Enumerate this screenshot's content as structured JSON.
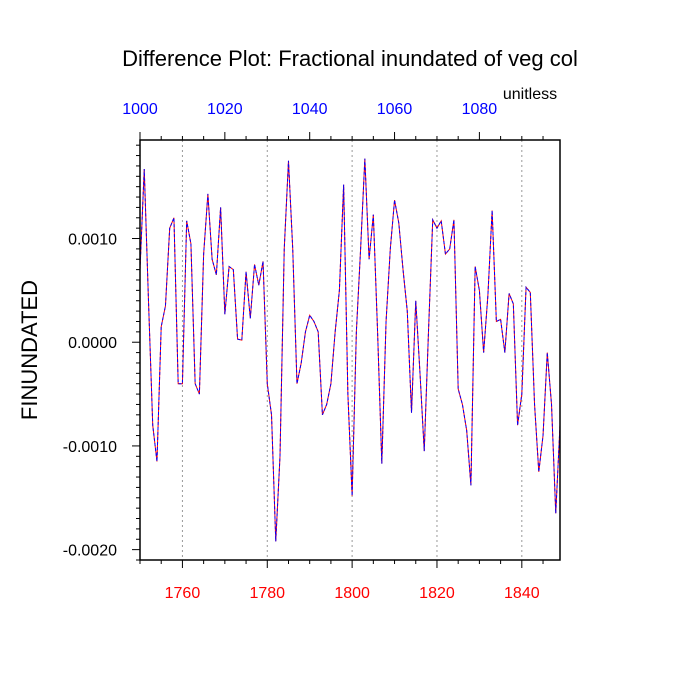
{
  "chart_data": {
    "type": "line",
    "title": "Difference Plot: Fractional inundated of veg col",
    "ylabel": "FINUNDATED",
    "units_label": "unitless",
    "xlim": [
      1750,
      1849
    ],
    "ylim": [
      -0.0021,
      0.00195
    ],
    "x_bottom_ticks": [
      1760,
      1780,
      1800,
      1820,
      1840
    ],
    "x_bottom_tick_labels": [
      "1760",
      "1780",
      "1800",
      "1820",
      "1840"
    ],
    "x_top_ticks": [
      1000,
      1020,
      1040,
      1060,
      1080
    ],
    "x_top_tick_labels": [
      "1000",
      "1020",
      "1040",
      "1060",
      "1080"
    ],
    "x_top_offset": 750,
    "y_ticks": [
      0.001,
      0.0,
      -0.001,
      -0.002
    ],
    "y_tick_labels": [
      "0.0010",
      "0.0000",
      "-0.0010",
      "-0.0020"
    ],
    "grid": "vertical dotted at bottom ticks",
    "colors": {
      "series_a": "#ff0000",
      "series_b": "#0000ff",
      "bottom_ticks": "#ff0000",
      "top_ticks": "#0000ff",
      "axis": "#000000",
      "grid": "#999999"
    },
    "series": [
      {
        "name": "difference",
        "x": [
          1750,
          1751,
          1752,
          1753,
          1754,
          1755,
          1756,
          1757,
          1758,
          1759,
          1760,
          1761,
          1762,
          1763,
          1764,
          1765,
          1766,
          1767,
          1768,
          1769,
          1770,
          1771,
          1772,
          1773,
          1774,
          1775,
          1776,
          1777,
          1778,
          1779,
          1780,
          1781,
          1782,
          1783,
          1784,
          1785,
          1786,
          1787,
          1788,
          1789,
          1790,
          1791,
          1792,
          1793,
          1794,
          1795,
          1796,
          1797,
          1798,
          1799,
          1800,
          1801,
          1802,
          1803,
          1804,
          1805,
          1806,
          1807,
          1808,
          1809,
          1810,
          1811,
          1812,
          1813,
          1814,
          1815,
          1816,
          1817,
          1818,
          1819,
          1820,
          1821,
          1822,
          1823,
          1824,
          1825,
          1826,
          1827,
          1828,
          1829,
          1830,
          1831,
          1832,
          1833,
          1834,
          1835,
          1836,
          1837,
          1838,
          1839,
          1840,
          1841,
          1842,
          1843,
          1844,
          1845,
          1846,
          1847,
          1848,
          1849
        ],
        "values": [
          0.0007,
          0.00167,
          0.0004,
          -0.0008,
          -0.00115,
          0.00015,
          0.00035,
          0.0011,
          0.0012,
          -0.0004,
          -0.0004,
          0.00117,
          0.00095,
          -0.0004,
          -0.0005,
          0.00085,
          0.00143,
          0.0008,
          0.00065,
          0.0013,
          0.00027,
          0.00073,
          0.0007,
          3e-05,
          2e-05,
          0.00068,
          0.00023,
          0.00075,
          0.00055,
          0.00078,
          -0.0004,
          -0.0007,
          -0.00192,
          -0.0011,
          0.0009,
          0.00175,
          0.0009,
          -0.0004,
          -0.0002,
          0.0001,
          0.00026,
          0.0002,
          0.0001,
          -0.0007,
          -0.0006,
          -0.0004,
          0.0001,
          0.0005,
          0.00152,
          -0.0005,
          -0.00148,
          0.0001,
          0.0009,
          0.00177,
          0.0008,
          0.00123,
          0.0001,
          -0.00117,
          0.0002,
          0.0009,
          0.00137,
          0.00115,
          0.0007,
          0.0003,
          -0.00068,
          0.0004,
          -0.0003,
          -0.00105,
          0.0001,
          0.00118,
          0.0011,
          0.00117,
          0.00085,
          0.0009,
          0.00118,
          -0.00045,
          -0.0006,
          -0.00085,
          -0.00138,
          0.00073,
          0.0005,
          -0.0001,
          0.00045,
          0.00127,
          0.0002,
          0.00022,
          -0.0001,
          0.00047,
          0.00037,
          -0.0008,
          -0.0005,
          0.00053,
          0.00048,
          -0.0006,
          -0.00125,
          -0.0009,
          -0.0001,
          -0.0006,
          -0.00165,
          -0.0008
        ]
      }
    ]
  }
}
